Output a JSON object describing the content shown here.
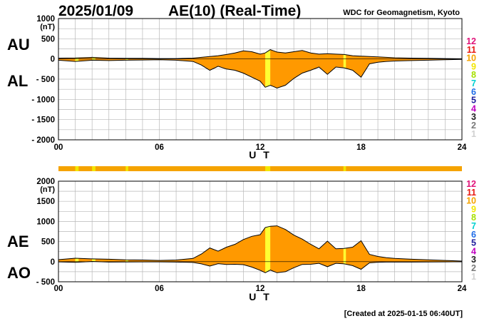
{
  "date": "2025/01/09",
  "title": "AE(10) (Real-Time)",
  "institution": "WDC for Geomagnetism, Kyoto",
  "created": "[Created at 2025-01-15 06:40UT]",
  "x_axis_label": "U T",
  "x_ticks": [
    "00",
    "06",
    "12",
    "18",
    "24"
  ],
  "station_scale": {
    "labels": [
      "12",
      "11",
      "10",
      "9",
      "8",
      "7",
      "6",
      "5",
      "4",
      "3",
      "2",
      "1"
    ],
    "colors": [
      "#e0157a",
      "#e8170f",
      "#f5a300",
      "#f2e600",
      "#a6e000",
      "#00d0d0",
      "#1e6ce8",
      "#1a1a9a",
      "#c000c0",
      "#202020",
      "#7a7a7a",
      "#d0d0d0"
    ]
  },
  "colors": {
    "fill": "#ff9900",
    "highlight": "#ffff33",
    "line": "#000000",
    "grid": "#b8b8b8"
  },
  "chart_data": [
    {
      "type": "area",
      "panel": "AU/AL",
      "series_labels": [
        "AU",
        "AL"
      ],
      "ylabel": "(nT)",
      "y_ticks": [
        "1000",
        "500",
        "0",
        "- 500",
        "- 1000",
        "- 1500",
        "- 2000"
      ],
      "ylim": [
        -2000,
        1000
      ],
      "x_unit": "hours UT",
      "xlim": [
        0,
        24
      ],
      "series": [
        {
          "name": "AU",
          "x": [
            0,
            1,
            2,
            3,
            4,
            5,
            6,
            7,
            8,
            8.5,
            9,
            9.5,
            10,
            10.5,
            11,
            11.5,
            12,
            12.3,
            12.6,
            13,
            13.5,
            14,
            14.5,
            15,
            15.5,
            16,
            16.5,
            17,
            17.5,
            18,
            18.5,
            19,
            19.5,
            20,
            21,
            22,
            23,
            24
          ],
          "values": [
            20,
            25,
            40,
            20,
            15,
            15,
            10,
            10,
            20,
            40,
            60,
            80,
            110,
            150,
            200,
            180,
            120,
            150,
            230,
            170,
            150,
            180,
            210,
            150,
            120,
            130,
            120,
            110,
            80,
            70,
            60,
            50,
            40,
            30,
            20,
            15,
            10,
            5
          ]
        },
        {
          "name": "AL",
          "x": [
            0,
            1,
            2,
            3,
            4,
            5,
            6,
            7,
            8,
            8.5,
            9,
            9.5,
            10,
            10.5,
            11,
            11.5,
            12,
            12.3,
            12.6,
            13,
            13.5,
            14,
            14.5,
            15,
            15.5,
            16,
            16.5,
            17,
            17.5,
            18,
            18.5,
            19,
            19.5,
            20,
            21,
            22,
            23,
            24
          ],
          "values": [
            -30,
            -60,
            -30,
            -40,
            -30,
            -25,
            -20,
            -30,
            -60,
            -150,
            -280,
            -180,
            -250,
            -280,
            -350,
            -450,
            -550,
            -700,
            -650,
            -720,
            -650,
            -480,
            -350,
            -280,
            -200,
            -380,
            -200,
            -220,
            -280,
            -450,
            -120,
            -80,
            -60,
            -50,
            -40,
            -30,
            -20,
            -10
          ]
        }
      ],
      "highlight_intervals": [
        [
          1.0,
          1.2
        ],
        [
          2.0,
          2.2
        ],
        [
          4.0,
          4.15
        ],
        [
          12.3,
          12.6
        ],
        [
          16.95,
          17.1
        ]
      ]
    },
    {
      "type": "area",
      "panel": "AE/AO",
      "series_labels": [
        "AE",
        "AO"
      ],
      "ylabel": "(nT)",
      "y_ticks": [
        "2000",
        "1500",
        "1000",
        "500",
        "0",
        "- 500"
      ],
      "ylim": [
        -500,
        2000
      ],
      "x_unit": "hours UT",
      "xlim": [
        0,
        24
      ],
      "series": [
        {
          "name": "AE",
          "x": [
            0,
            1,
            2,
            3,
            4,
            5,
            6,
            7,
            8,
            8.5,
            9,
            9.5,
            10,
            10.5,
            11,
            11.5,
            12,
            12.3,
            12.6,
            13,
            13.5,
            14,
            14.5,
            15,
            15.5,
            16,
            16.5,
            17,
            17.5,
            18,
            18.5,
            19,
            19.5,
            20,
            21,
            22,
            23,
            24
          ],
          "values": [
            50,
            85,
            70,
            60,
            45,
            40,
            30,
            40,
            80,
            190,
            340,
            260,
            360,
            430,
            550,
            630,
            670,
            850,
            880,
            890,
            800,
            660,
            560,
            430,
            320,
            510,
            320,
            330,
            360,
            520,
            180,
            130,
            100,
            80,
            60,
            45,
            30,
            15
          ]
        },
        {
          "name": "AO",
          "x": [
            0,
            1,
            2,
            3,
            4,
            5,
            6,
            7,
            8,
            8.5,
            9,
            9.5,
            10,
            10.5,
            11,
            11.5,
            12,
            12.3,
            12.6,
            13,
            13.5,
            14,
            14.5,
            15,
            15.5,
            16,
            16.5,
            17,
            17.5,
            18,
            18.5,
            19,
            19.5,
            20,
            21,
            22,
            23,
            24
          ],
          "values": [
            -5,
            -17,
            5,
            -10,
            -7,
            -5,
            -5,
            -10,
            -20,
            -55,
            -110,
            -50,
            -70,
            -65,
            -75,
            -135,
            -215,
            -275,
            -210,
            -275,
            -250,
            -150,
            -70,
            -65,
            -40,
            -125,
            -40,
            -55,
            -100,
            -190,
            -30,
            -15,
            -10,
            -10,
            -10,
            -8,
            -5,
            -3
          ]
        }
      ],
      "highlight_intervals": [
        [
          1.0,
          1.2
        ],
        [
          2.0,
          2.2
        ],
        [
          4.0,
          4.15
        ],
        [
          12.3,
          12.6
        ],
        [
          16.95,
          17.1
        ]
      ]
    }
  ],
  "quality_bar_segments": [
    {
      "start": 0,
      "end": 24,
      "level": "10"
    },
    {
      "start": 1.0,
      "end": 1.2,
      "level": "9"
    },
    {
      "start": 2.0,
      "end": 2.2,
      "level": "9"
    },
    {
      "start": 4.0,
      "end": 4.15,
      "level": "9"
    },
    {
      "start": 12.3,
      "end": 12.6,
      "level": "9"
    },
    {
      "start": 16.95,
      "end": 17.1,
      "level": "9"
    }
  ]
}
